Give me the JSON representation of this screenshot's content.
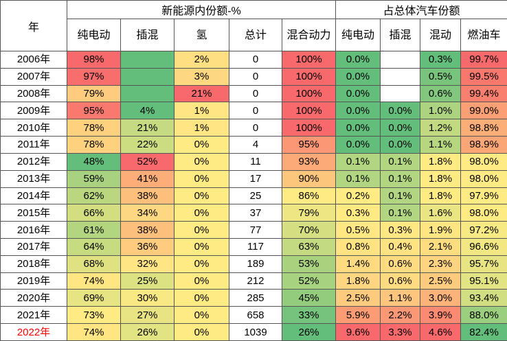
{
  "table": {
    "year_header": "年",
    "groups": [
      "新能源内份额-%",
      "占总体汽车份额"
    ],
    "group_spans": [
      5,
      4
    ],
    "columns": [
      {
        "label": "纯电动",
        "scale": true
      },
      {
        "label": "插混",
        "scale": true,
        "blank": "#63be7b"
      },
      {
        "label": "氢",
        "scale": true
      },
      {
        "label": "总计",
        "scale": false
      },
      {
        "label": "混合动力",
        "scale": true
      },
      {
        "label": "纯电动",
        "scale": true
      },
      {
        "label": "插混",
        "scale": true,
        "blank": "#ffffff"
      },
      {
        "label": "混动",
        "scale": true
      },
      {
        "label": "燃油车",
        "scale": true
      }
    ],
    "scale_colors": [
      "#63be7b",
      "#ffeb84",
      "#f8696b"
    ],
    "rows": [
      {
        "year": "2006年",
        "cells": [
          "98%",
          null,
          "2%",
          "0",
          "100%",
          "0.0%",
          null,
          "0.3%",
          "99.7%"
        ]
      },
      {
        "year": "2007年",
        "cells": [
          "97%",
          null,
          "3%",
          "0",
          "100%",
          "0.0%",
          null,
          "0.5%",
          "99.5%"
        ]
      },
      {
        "year": "2008年",
        "cells": [
          "79%",
          null,
          "21%",
          "0",
          "100%",
          "0.0%",
          null,
          "0.6%",
          "99.4%"
        ]
      },
      {
        "year": "2009年",
        "cells": [
          "95%",
          "4%",
          "1%",
          "0",
          "100%",
          "0.0%",
          "0.0%",
          "1.0%",
          "99.0%"
        ]
      },
      {
        "year": "2010年",
        "cells": [
          "78%",
          "21%",
          "1%",
          "0",
          "100%",
          "0.0%",
          "0.0%",
          "1.2%",
          "98.8%"
        ]
      },
      {
        "year": "2011年",
        "cells": [
          "78%",
          "22%",
          "0%",
          "4",
          "95%",
          "0.0%",
          "0.0%",
          "1.1%",
          "98.9%"
        ]
      },
      {
        "year": "2012年",
        "cells": [
          "48%",
          "52%",
          "0%",
          "11",
          "93%",
          "0.1%",
          "0.1%",
          "1.8%",
          "98.0%"
        ]
      },
      {
        "year": "2013年",
        "cells": [
          "59%",
          "41%",
          "0%",
          "17",
          "90%",
          "0.1%",
          "0.1%",
          "1.8%",
          "98.0%"
        ]
      },
      {
        "year": "2014年",
        "cells": [
          "62%",
          "38%",
          "0%",
          "25",
          "86%",
          "0.2%",
          "0.1%",
          "1.8%",
          "97.9%"
        ]
      },
      {
        "year": "2015年",
        "cells": [
          "66%",
          "34%",
          "0%",
          "37",
          "79%",
          "0.3%",
          "0.1%",
          "1.6%",
          "98.0%"
        ]
      },
      {
        "year": "2016年",
        "cells": [
          "61%",
          "38%",
          "0%",
          "77",
          "70%",
          "0.5%",
          "0.3%",
          "1.9%",
          "97.2%"
        ]
      },
      {
        "year": "2017年",
        "cells": [
          "64%",
          "36%",
          "0%",
          "117",
          "63%",
          "0.8%",
          "0.4%",
          "2.1%",
          "96.6%"
        ]
      },
      {
        "year": "2018年",
        "cells": [
          "68%",
          "32%",
          "0%",
          "189",
          "53%",
          "1.4%",
          "0.6%",
          "2.3%",
          "95.7%"
        ]
      },
      {
        "year": "2019年",
        "cells": [
          "74%",
          "25%",
          "0%",
          "212",
          "52%",
          "1.8%",
          "0.6%",
          "2.5%",
          "95.1%"
        ]
      },
      {
        "year": "2020年",
        "cells": [
          "69%",
          "30%",
          "0%",
          "285",
          "45%",
          "2.5%",
          "1.1%",
          "3.0%",
          "93.4%"
        ]
      },
      {
        "year": "2021年",
        "cells": [
          "73%",
          "27%",
          "0%",
          "658",
          "33%",
          "5.9%",
          "2.2%",
          "3.9%",
          "88.0%"
        ]
      },
      {
        "year": "2022年",
        "cells": [
          "74%",
          "26%",
          "0%",
          "1039",
          "26%",
          "9.6%",
          "3.3%",
          "4.6%",
          "82.4%"
        ],
        "color": "#ff0000"
      }
    ]
  }
}
